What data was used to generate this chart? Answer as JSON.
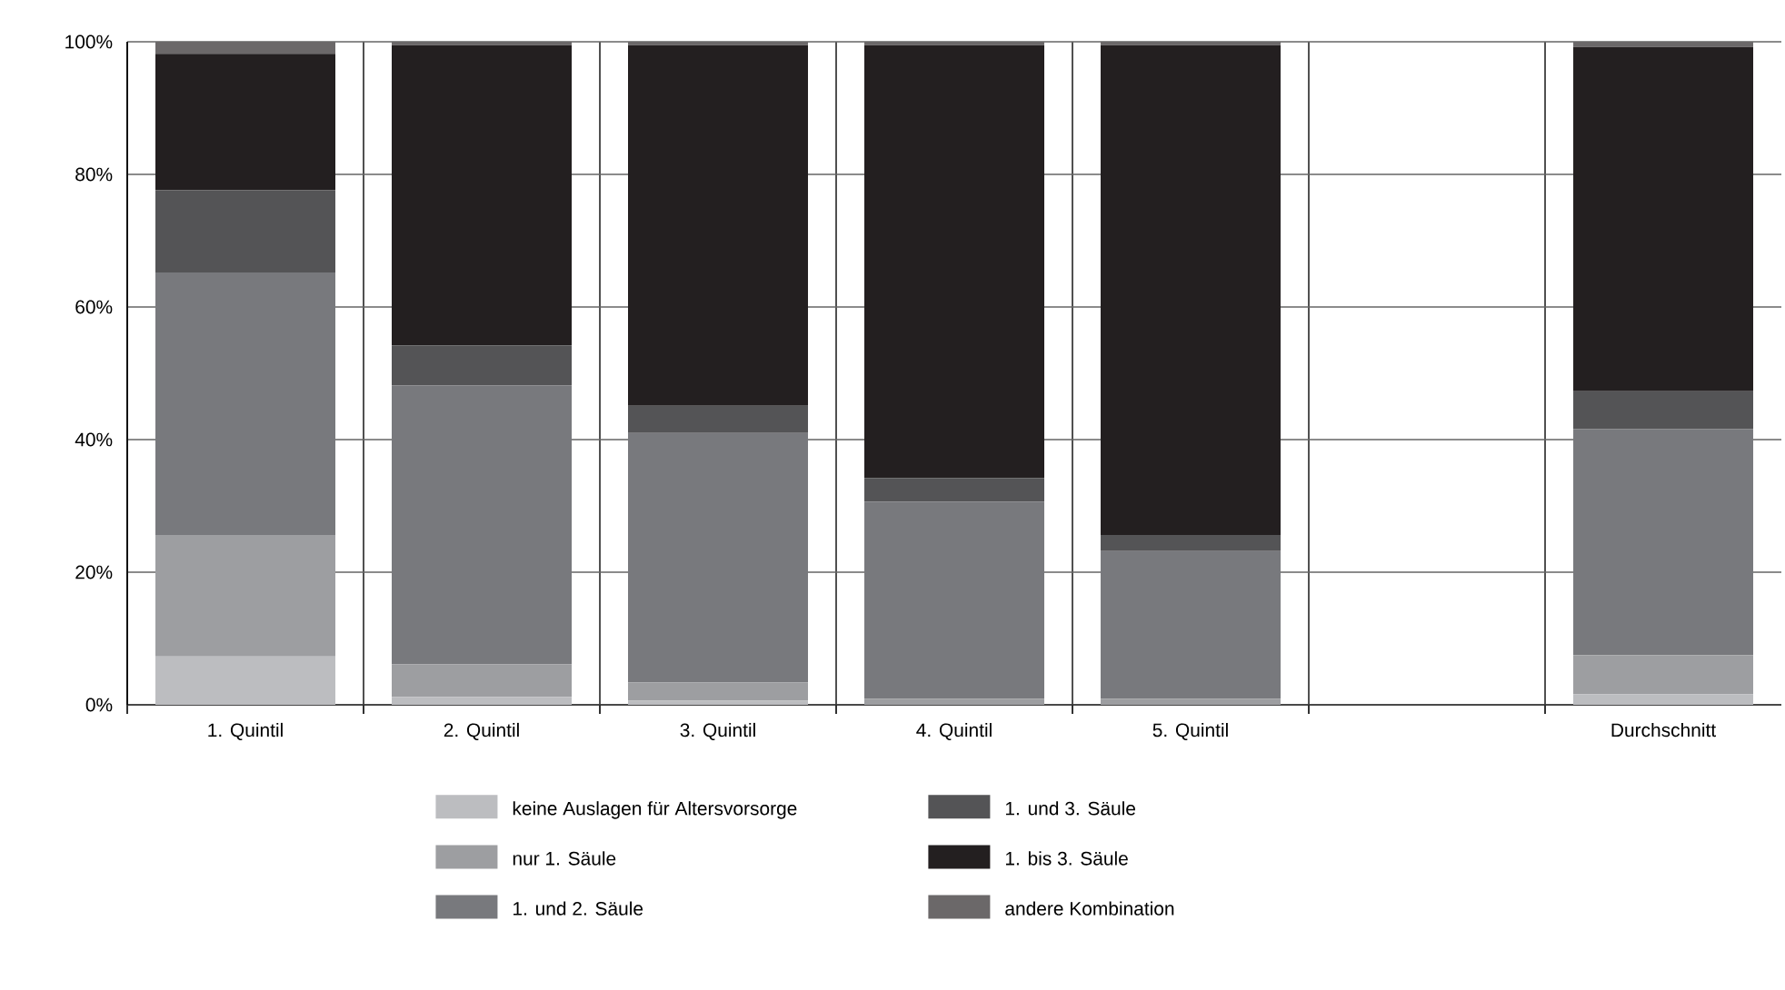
{
  "chart_data": {
    "type": "bar",
    "stacked": true,
    "categories": [
      "1. Quintil",
      "2. Quintil",
      "3. Quintil",
      "4. Quintil",
      "5. Quintil",
      null,
      "Durchschnitt"
    ],
    "series": [
      {
        "name": "keine Auslagen für Altersvorsorge",
        "color": "#bcbdc0",
        "values": [
          7.3,
          1.2,
          0.6,
          null,
          null,
          null,
          1.6
        ]
      },
      {
        "name": "nur 1. Säule",
        "color": "#9d9ea1",
        "values": [
          18.3,
          4.9,
          2.8,
          0.9,
          0.9,
          null,
          5.9
        ]
      },
      {
        "name": "1. und 2. Säule",
        "color": "#78797d",
        "values": [
          39.6,
          42.1,
          37.6,
          29.7,
          22.3,
          null,
          34.1
        ]
      },
      {
        "name": "1. und 3. Säule",
        "color": "#545456",
        "values": [
          12.4,
          6.0,
          4.1,
          3.6,
          2.4,
          null,
          5.7
        ]
      },
      {
        "name": "1. bis 3. Säule",
        "color": "#231f20",
        "values": [
          20.6,
          45.3,
          54.4,
          65.3,
          73.9,
          null,
          51.9
        ]
      },
      {
        "name": "andere Kombination",
        "color": "#6b6869",
        "values": [
          1.8,
          0.5,
          0.5,
          0.5,
          0.5,
          null,
          0.8
        ]
      }
    ],
    "ylim": [
      0,
      100
    ],
    "yticks": [
      {
        "value": 0,
        "label": "0%"
      },
      {
        "value": 20,
        "label": "20%"
      },
      {
        "value": 40,
        "label": "40%"
      },
      {
        "value": 60,
        "label": "60%"
      },
      {
        "value": 80,
        "label": "80%"
      },
      {
        "value": 100,
        "label": "100%"
      }
    ],
    "grid": true,
    "legend": "bottom"
  }
}
